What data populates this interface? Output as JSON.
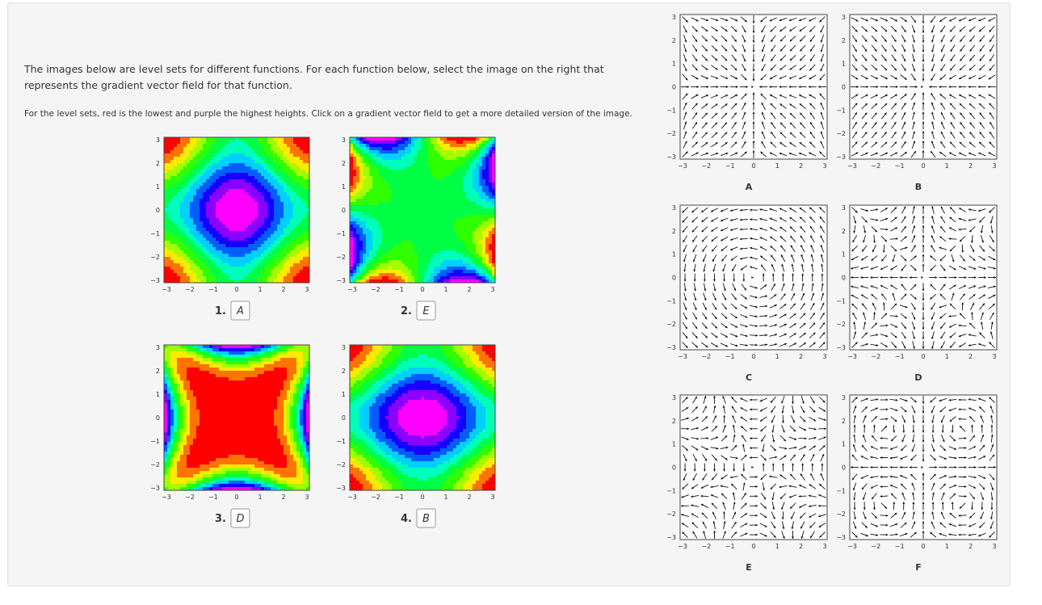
{
  "instructions": {
    "intro": "The images below are level sets for different functions. For each function below, select the image on the right that represents the gradient vector field for that function.",
    "note": "For the level sets, red is the lowest and purple the highest heights. Click on a gradient vector field to get a more detailed version of the image."
  },
  "axis_ticks": [
    "3",
    "2",
    "1",
    "0",
    "−1",
    "−2",
    "−3"
  ],
  "level_sets": [
    {
      "number": "1.",
      "answer": "A"
    },
    {
      "number": "2.",
      "answer": "E"
    },
    {
      "number": "3.",
      "answer": "D"
    },
    {
      "number": "4.",
      "answer": "B"
    }
  ],
  "vector_fields": [
    {
      "label": "A"
    },
    {
      "label": "B"
    },
    {
      "label": "C"
    },
    {
      "label": "D"
    },
    {
      "label": "E"
    },
    {
      "label": "F"
    }
  ]
}
